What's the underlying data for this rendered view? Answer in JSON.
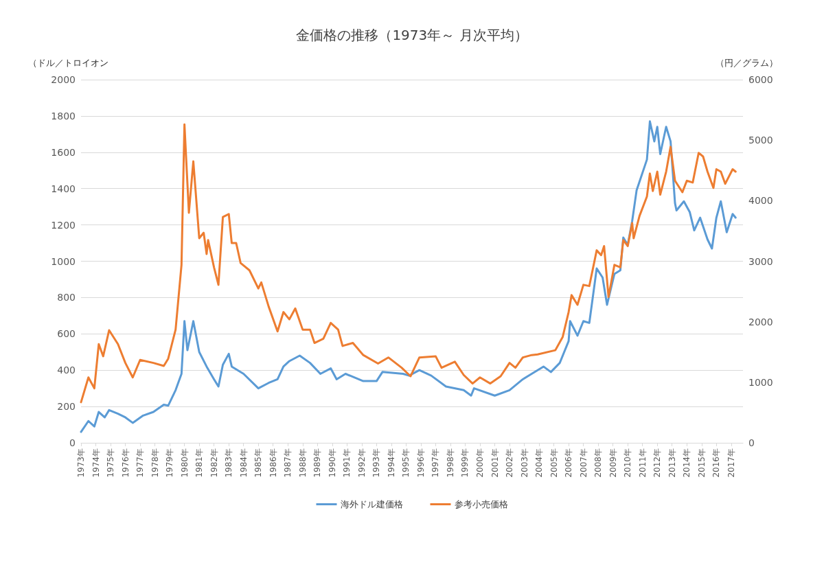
{
  "chart_data": {
    "type": "line",
    "title": "金価格の推移（1973年～ 月次平均）",
    "ylabel": "（ドル／トロイオン",
    "y2label": "（円／グラム）",
    "xlim": [
      1973,
      2017.8
    ],
    "xticks": [
      {
        "value": 1973,
        "label": "1973年"
      },
      {
        "value": 1974,
        "label": "1974年"
      },
      {
        "value": 1975,
        "label": "1975年"
      },
      {
        "value": 1976,
        "label": "1976年"
      },
      {
        "value": 1977,
        "label": "1977年"
      },
      {
        "value": 1978,
        "label": "1978年"
      },
      {
        "value": 1979,
        "label": "1979年"
      },
      {
        "value": 1980,
        "label": "1980年"
      },
      {
        "value": 1981,
        "label": "1981年"
      },
      {
        "value": 1982,
        "label": "1982年"
      },
      {
        "value": 1983,
        "label": "1983年"
      },
      {
        "value": 1984,
        "label": "1984年"
      },
      {
        "value": 1985,
        "label": "1985年"
      },
      {
        "value": 1986,
        "label": "1986年"
      },
      {
        "value": 1987,
        "label": "1987年"
      },
      {
        "value": 1988,
        "label": "1988年"
      },
      {
        "value": 1989,
        "label": "1989年"
      },
      {
        "value": 1990,
        "label": "1990年"
      },
      {
        "value": 1991,
        "label": "1991年"
      },
      {
        "value": 1992,
        "label": "1992年"
      },
      {
        "value": 1993,
        "label": "1993年"
      },
      {
        "value": 1994,
        "label": "1994年"
      },
      {
        "value": 1995,
        "label": "1995年"
      },
      {
        "value": 1996,
        "label": "1996年"
      },
      {
        "value": 1997,
        "label": "1997年"
      },
      {
        "value": 1998,
        "label": "1998年"
      },
      {
        "value": 1999,
        "label": "1999年"
      },
      {
        "value": 2000,
        "label": "2000年"
      },
      {
        "value": 2001,
        "label": "2001年"
      },
      {
        "value": 2002,
        "label": "2002年"
      },
      {
        "value": 2003,
        "label": "2003年"
      },
      {
        "value": 2004,
        "label": "2004年"
      },
      {
        "value": 2005,
        "label": "2005年"
      },
      {
        "value": 2006,
        "label": "2006年"
      },
      {
        "value": 2007,
        "label": "2007年"
      },
      {
        "value": 2008,
        "label": "2008年"
      },
      {
        "value": 2009,
        "label": "2009年"
      },
      {
        "value": 2010,
        "label": "2010年"
      },
      {
        "value": 2011,
        "label": "2011年"
      },
      {
        "value": 2012,
        "label": "2012年"
      },
      {
        "value": 2013,
        "label": "2013年"
      },
      {
        "value": 2014,
        "label": "2014年"
      },
      {
        "value": 2015,
        "label": "2015年"
      },
      {
        "value": 2016,
        "label": "2016年"
      },
      {
        "value": 2017,
        "label": "2017年"
      }
    ],
    "ylim": [
      0,
      2000
    ],
    "yticks": [
      0,
      200,
      400,
      600,
      800,
      1000,
      1200,
      1400,
      1600,
      1800,
      2000
    ],
    "y2lim": [
      0,
      6000
    ],
    "y2ticks": [
      0,
      1000,
      2000,
      3000,
      4000,
      5000,
      6000
    ],
    "grid": "y",
    "legend": "bottom",
    "marker": "none",
    "line_style": "solid",
    "series": [
      {
        "name": "海外ドル建価格",
        "color": "#5b9bd5",
        "x": [
          1973.0,
          1973.5,
          1973.9,
          1974.2,
          1974.6,
          1974.9,
          1975.5,
          1976.0,
          1976.5,
          1977.2,
          1977.9,
          1978.6,
          1978.9,
          1979.4,
          1979.8,
          1980.0,
          1980.2,
          1980.6,
          1981.0,
          1981.5,
          1982.0,
          1982.3,
          1982.6,
          1983.0,
          1983.2,
          1984.0,
          1985.0,
          1985.7,
          1986.3,
          1986.7,
          1987.1,
          1987.8,
          1988.5,
          1989.2,
          1989.9,
          1990.3,
          1990.9,
          1992.1,
          1993.0,
          1993.4,
          1994.8,
          1995.2,
          1995.9,
          1996.7,
          1997.7,
          1998.9,
          1999.4,
          1999.6,
          2001.0,
          2002.0,
          2002.9,
          2003.5,
          2004.3,
          2004.8,
          2005.4,
          2006.0,
          2006.1,
          2006.6,
          2007.0,
          2007.4,
          2007.9,
          2008.3,
          2008.6,
          2009.1,
          2009.5,
          2009.7,
          2010.0,
          2010.3,
          2010.6,
          2011.3,
          2011.5,
          2011.8,
          2012.0,
          2012.2,
          2012.6,
          2012.9,
          2013.2,
          2013.3,
          2013.8,
          2014.2,
          2014.5,
          2014.9,
          2015.4,
          2015.7,
          2016.0,
          2016.3,
          2016.7,
          2017.1,
          2017.3
        ],
        "values": [
          60,
          120,
          90,
          170,
          140,
          180,
          160,
          140,
          110,
          150,
          170,
          210,
          205,
          290,
          380,
          670,
          510,
          670,
          500,
          420,
          350,
          310,
          430,
          490,
          420,
          380,
          300,
          330,
          350,
          420,
          450,
          480,
          440,
          380,
          410,
          350,
          380,
          340,
          340,
          390,
          380,
          370,
          400,
          370,
          310,
          290,
          260,
          300,
          260,
          290,
          350,
          380,
          420,
          390,
          440,
          560,
          670,
          590,
          670,
          660,
          960,
          910,
          760,
          930,
          950,
          1130,
          1090,
          1220,
          1390,
          1560,
          1770,
          1660,
          1740,
          1590,
          1740,
          1660,
          1320,
          1280,
          1330,
          1270,
          1170,
          1240,
          1120,
          1070,
          1240,
          1330,
          1160,
          1260,
          1240
        ]
      },
      {
        "name": "参考小売価格",
        "color": "#ed7d31",
        "axis": "y2",
        "x": [
          1973.0,
          1973.5,
          1973.9,
          1974.2,
          1974.5,
          1974.9,
          1975.5,
          1976.0,
          1976.5,
          1977.0,
          1977.9,
          1978.6,
          1978.9,
          1979.4,
          1979.8,
          1980.0,
          1980.3,
          1980.6,
          1981.0,
          1981.3,
          1981.5,
          1981.6,
          1982.0,
          1982.3,
          1982.6,
          1983.0,
          1983.2,
          1983.5,
          1983.8,
          1984.4,
          1985.0,
          1985.2,
          1985.7,
          1986.3,
          1986.7,
          1987.1,
          1987.5,
          1988.0,
          1988.5,
          1988.8,
          1989.4,
          1989.9,
          1990.4,
          1990.7,
          1991.4,
          1992.1,
          1993.1,
          1993.8,
          1994.7,
          1995.3,
          1995.9,
          1997.0,
          1997.4,
          1998.3,
          1998.9,
          1999.5,
          2000.0,
          2000.7,
          2001.4,
          2002.0,
          2002.4,
          2002.9,
          2003.5,
          2003.9,
          2005.1,
          2005.6,
          2006.0,
          2006.2,
          2006.6,
          2007.0,
          2007.4,
          2007.9,
          2008.2,
          2008.4,
          2008.7,
          2009.1,
          2009.5,
          2009.7,
          2010.0,
          2010.3,
          2010.4,
          2010.8,
          2011.3,
          2011.5,
          2011.7,
          2012.0,
          2012.2,
          2012.6,
          2012.9,
          2013.2,
          2013.7,
          2014.0,
          2014.4,
          2014.8,
          2015.1,
          2015.4,
          2015.8,
          2016.0,
          2016.3,
          2016.6,
          2017.1,
          2017.3
        ],
        "values": [
          670,
          1080,
          900,
          1630,
          1430,
          1860,
          1630,
          1320,
          1080,
          1370,
          1320,
          1270,
          1390,
          1870,
          2940,
          5260,
          3800,
          4650,
          3380,
          3470,
          3120,
          3350,
          2900,
          2610,
          3730,
          3780,
          3300,
          3300,
          2970,
          2850,
          2550,
          2650,
          2250,
          1840,
          2160,
          2040,
          2220,
          1870,
          1870,
          1650,
          1720,
          1980,
          1870,
          1600,
          1650,
          1450,
          1310,
          1410,
          1240,
          1100,
          1410,
          1430,
          1240,
          1340,
          1120,
          980,
          1080,
          980,
          1100,
          1320,
          1240,
          1410,
          1450,
          1460,
          1530,
          1750,
          2160,
          2440,
          2280,
          2610,
          2590,
          3180,
          3100,
          3250,
          2410,
          2940,
          2900,
          3350,
          3250,
          3630,
          3380,
          3750,
          4070,
          4450,
          4160,
          4480,
          4100,
          4480,
          4890,
          4330,
          4140,
          4330,
          4300,
          4790,
          4730,
          4480,
          4210,
          4520,
          4480,
          4280,
          4520,
          4480
        ]
      }
    ]
  }
}
